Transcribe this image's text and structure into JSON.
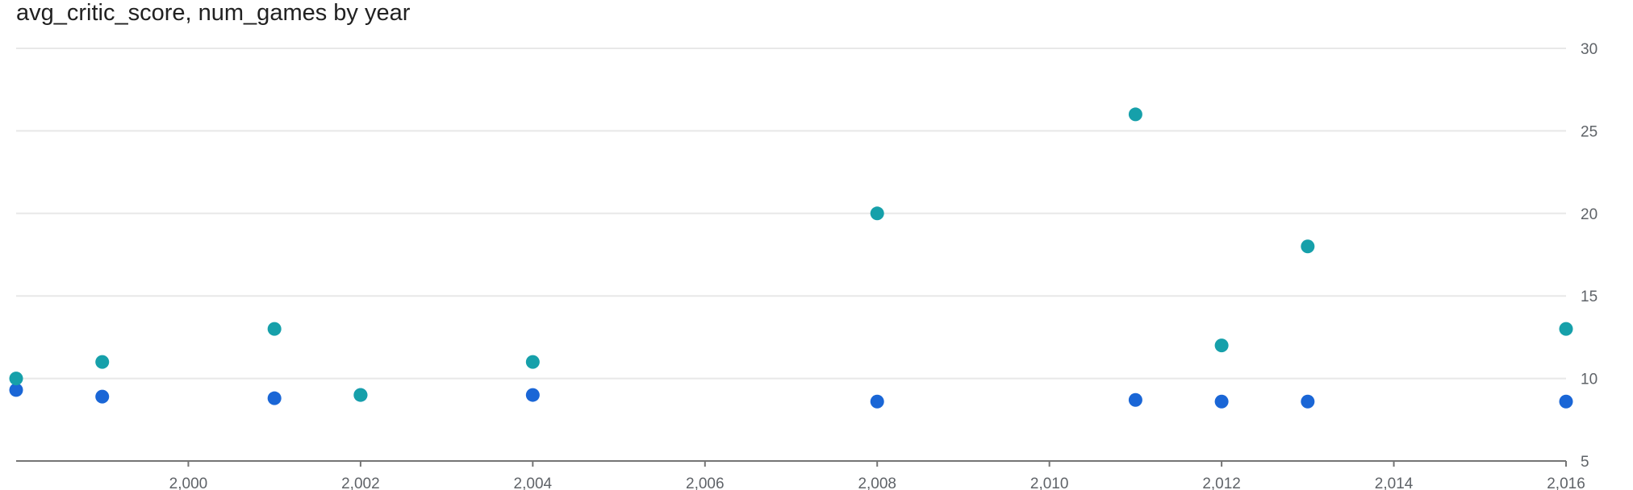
{
  "chart_data": {
    "type": "scatter",
    "title": "avg_critic_score, num_games by year",
    "xlabel": "",
    "ylabel": "",
    "xlim": [
      1998,
      2016
    ],
    "ylim": [
      5,
      30
    ],
    "x_ticks": [
      2000,
      2002,
      2004,
      2006,
      2008,
      2010,
      2012,
      2014,
      2016
    ],
    "x_tick_labels": [
      "2,000",
      "2,002",
      "2,004",
      "2,006",
      "2,008",
      "2,010",
      "2,012",
      "2,014",
      "2,016"
    ],
    "y_ticks": [
      5,
      10,
      15,
      20,
      25,
      30
    ],
    "y_tick_labels": [
      "5",
      "10",
      "15",
      "20",
      "25",
      "30"
    ],
    "y_axis_side": "right",
    "grid": true,
    "legend": "none",
    "series": [
      {
        "color": "#1a66d6",
        "points": [
          {
            "x": 1998,
            "y": 9.3
          },
          {
            "x": 1999,
            "y": 8.9
          },
          {
            "x": 2001,
            "y": 8.8
          },
          {
            "x": 2002,
            "y": 9.0
          },
          {
            "x": 2004,
            "y": 9.0
          },
          {
            "x": 2008,
            "y": 8.6
          },
          {
            "x": 2011,
            "y": 8.7
          },
          {
            "x": 2012,
            "y": 8.6
          },
          {
            "x": 2013,
            "y": 8.6
          },
          {
            "x": 2016,
            "y": 8.6
          }
        ]
      },
      {
        "color": "#16a0aa",
        "points": [
          {
            "x": 1998,
            "y": 10
          },
          {
            "x": 1999,
            "y": 11
          },
          {
            "x": 2001,
            "y": 13
          },
          {
            "x": 2002,
            "y": 9
          },
          {
            "x": 2004,
            "y": 11
          },
          {
            "x": 2008,
            "y": 20
          },
          {
            "x": 2011,
            "y": 26
          },
          {
            "x": 2012,
            "y": 12
          },
          {
            "x": 2013,
            "y": 18
          },
          {
            "x": 2016,
            "y": 13
          }
        ]
      }
    ]
  }
}
